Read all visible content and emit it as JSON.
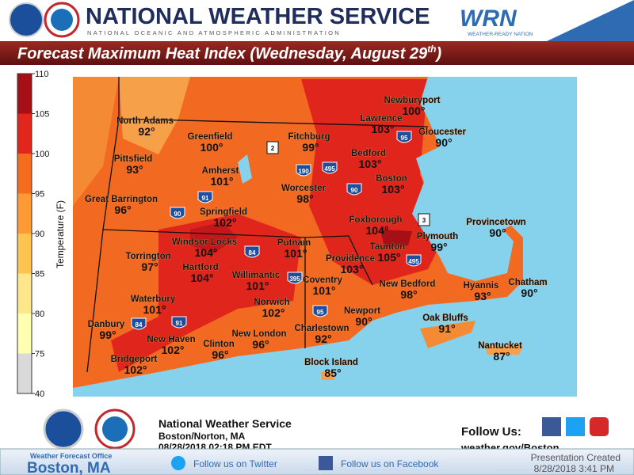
{
  "header": {
    "title": "NATIONAL WEATHER SERVICE",
    "subtitle": "NATIONAL OCEANIC AND ATMOSPHERIC ADMINISTRATION",
    "wrn": "WRN",
    "wrn_sub": "WEATHER-READY NATION"
  },
  "banner": {
    "text": "Forecast Maximum Heat Index (Wednesday, August 29",
    "sup": "th",
    "close": ")"
  },
  "legend": {
    "label": "Temperature (F)",
    "ticks": [
      40,
      75,
      80,
      85,
      90,
      95,
      100,
      105,
      110
    ]
  },
  "cities": [
    {
      "name": "North Adams",
      "value": "92°"
    },
    {
      "name": "Greenfield",
      "value": "100°"
    },
    {
      "name": "Pittsfield",
      "value": "93°"
    },
    {
      "name": "Fitchburg",
      "value": "99°"
    },
    {
      "name": "Amherst",
      "value": "101°"
    },
    {
      "name": "Worcester",
      "value": "98°"
    },
    {
      "name": "Great Barrington",
      "value": "96°"
    },
    {
      "name": "Springfield",
      "value": "102°"
    },
    {
      "name": "Newburyport",
      "value": "100°"
    },
    {
      "name": "Lawrence",
      "value": "103°"
    },
    {
      "name": "Gloucester",
      "value": "90°"
    },
    {
      "name": "Bedford",
      "value": "103°"
    },
    {
      "name": "Boston",
      "value": "103°"
    },
    {
      "name": "Foxborough",
      "value": "104°"
    },
    {
      "name": "Provincetown",
      "value": "90°"
    },
    {
      "name": "Plymouth",
      "value": "99°"
    },
    {
      "name": "Taunton",
      "value": "105°"
    },
    {
      "name": "Torrington",
      "value": "97°"
    },
    {
      "name": "Windsor Locks",
      "value": "104°"
    },
    {
      "name": "Putnam",
      "value": "101°"
    },
    {
      "name": "Hartford",
      "value": "104°"
    },
    {
      "name": "Providence",
      "value": "103°"
    },
    {
      "name": "Willimantic",
      "value": "101°"
    },
    {
      "name": "Coventry",
      "value": "101°"
    },
    {
      "name": "New Bedford",
      "value": "98°"
    },
    {
      "name": "Hyannis",
      "value": "93°"
    },
    {
      "name": "Chatham",
      "value": "90°"
    },
    {
      "name": "Waterbury",
      "value": "101°"
    },
    {
      "name": "Norwich",
      "value": "102°"
    },
    {
      "name": "Newport",
      "value": "90°"
    },
    {
      "name": "Oak Bluffs",
      "value": "91°"
    },
    {
      "name": "Danbury",
      "value": "99°"
    },
    {
      "name": "Charlestown",
      "value": "92°"
    },
    {
      "name": "New Haven",
      "value": "102°"
    },
    {
      "name": "Clinton",
      "value": "96°"
    },
    {
      "name": "New London",
      "value": "96°"
    },
    {
      "name": "Nantucket",
      "value": "87°"
    },
    {
      "name": "Bridgeport",
      "value": "102°"
    },
    {
      "name": "Block Island",
      "value": "85°"
    }
  ],
  "routes": [
    "2",
    "3",
    "95",
    "190",
    "495",
    "90",
    "91",
    "90",
    "84",
    "395",
    "495",
    "91",
    "84",
    "95"
  ],
  "footer": {
    "office": "National Weather Service",
    "location": "Boston/Norton, MA",
    "timestamp": "08/28/2018 02:18 PM EDT",
    "follow": "Follow Us:",
    "url": "weather.gov/Boston"
  },
  "bottom_bar": {
    "wfo": "Weather Forecast Office",
    "wfo_city": "Boston, MA",
    "twitter": "Follow us on Twitter",
    "facebook": "Follow us on Facebook",
    "created": "Presentation Created",
    "created_date": "8/28/2018 3:41 PM"
  }
}
